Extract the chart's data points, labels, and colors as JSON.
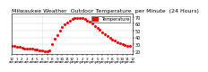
{
  "title": "Milwaukee Weather  Outdoor Temperature  per Minute  (24 Hours)",
  "bg_color": "#ffffff",
  "plot_bg_color": "#ffffff",
  "line_color": "#ff0000",
  "legend_color": "#ff0000",
  "legend_label": "Temperature",
  "x_values": [
    0,
    30,
    60,
    90,
    120,
    150,
    180,
    210,
    240,
    270,
    300,
    330,
    360,
    390,
    420,
    450,
    480,
    510,
    540,
    570,
    600,
    630,
    660,
    690,
    720,
    750,
    780,
    810,
    840,
    870,
    900,
    930,
    960,
    990,
    1020,
    1050,
    1080,
    1110,
    1140,
    1170,
    1200,
    1230,
    1260,
    1290,
    1320,
    1350,
    1380,
    1410
  ],
  "y_values": [
    28,
    27,
    26,
    26,
    25,
    24,
    24,
    23,
    23,
    22,
    22,
    21,
    21,
    20,
    20,
    21,
    30,
    38,
    44,
    50,
    55,
    59,
    62,
    65,
    67,
    68,
    69,
    69,
    68,
    67,
    65,
    63,
    60,
    57,
    54,
    51,
    48,
    45,
    42,
    40,
    37,
    35,
    33,
    31,
    30,
    29,
    28,
    27
  ],
  "ylim": [
    15,
    75
  ],
  "yticks": [
    20,
    30,
    40,
    50,
    60,
    70
  ],
  "xlim": [
    0,
    1440
  ],
  "title_fontsize": 4.5,
  "tick_fontsize": 3.5,
  "legend_fontsize": 3.5,
  "marker_size": 1.2,
  "grid_color": "#cccccc",
  "vline_x": 360,
  "vline_color": "#aaaaaa"
}
